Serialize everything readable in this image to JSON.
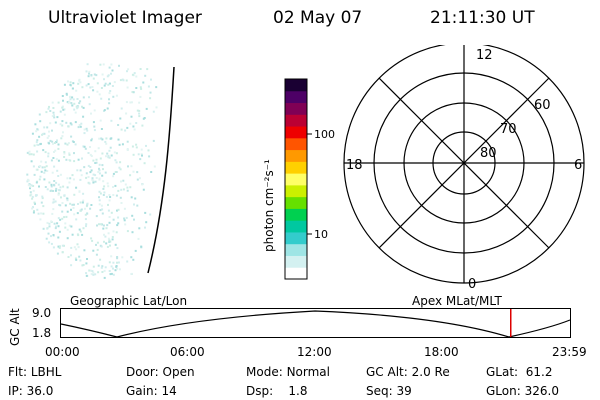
{
  "header": {
    "instrument": "Ultraviolet Imager",
    "date": "02 May 07",
    "time": "21:11:30 UT"
  },
  "colorbar": {
    "unit_label": "photon cm⁻²s⁻¹",
    "ticks": [
      {
        "value": 10,
        "label": "10"
      },
      {
        "value": 100,
        "label": "100"
      }
    ],
    "colors": [
      "#ffffff",
      "#d4f1f1",
      "#9fe5e5",
      "#33cccc",
      "#00c8a0",
      "#00d050",
      "#66e000",
      "#ccf000",
      "#ffff66",
      "#ffd000",
      "#ff9900",
      "#ff5500",
      "#ee0000",
      "#bb0033",
      "#800055",
      "#4d0066",
      "#1a0033"
    ]
  },
  "polar": {
    "lat_labels": [
      "80",
      "70",
      "60"
    ],
    "mlt_labels": {
      "top": "12",
      "left": "18",
      "right": "6",
      "bottom": "0"
    }
  },
  "timeline": {
    "left_label": "Geographic Lat/Lon",
    "right_label": "Apex MLat/MLT",
    "axis_title": "GC Alt",
    "y_ticks": [
      "9.0",
      "1.8"
    ],
    "x_ticks": [
      "00:00",
      "06:00",
      "12:00",
      "18:00",
      "23:59"
    ],
    "marker_time": "21:11:30",
    "marker_color": "#dd0000"
  },
  "footer": {
    "row1": [
      {
        "key": "Flt:",
        "value": "LBHL"
      },
      {
        "key": "Door:",
        "value": "Open"
      },
      {
        "key": "Mode:",
        "value": "Normal"
      },
      {
        "key": "GC Alt:",
        "value": "2.0 Re"
      },
      {
        "key": "GLat:",
        "value": "61.2"
      }
    ],
    "row2": [
      {
        "key": "IP:",
        "value": "36.0"
      },
      {
        "key": "Gain:",
        "value": "14"
      },
      {
        "key": "Dsp:",
        "value": "1.8"
      },
      {
        "key": "Seq:",
        "value": "39"
      },
      {
        "key": "GLon:",
        "value": "326.0"
      }
    ]
  }
}
